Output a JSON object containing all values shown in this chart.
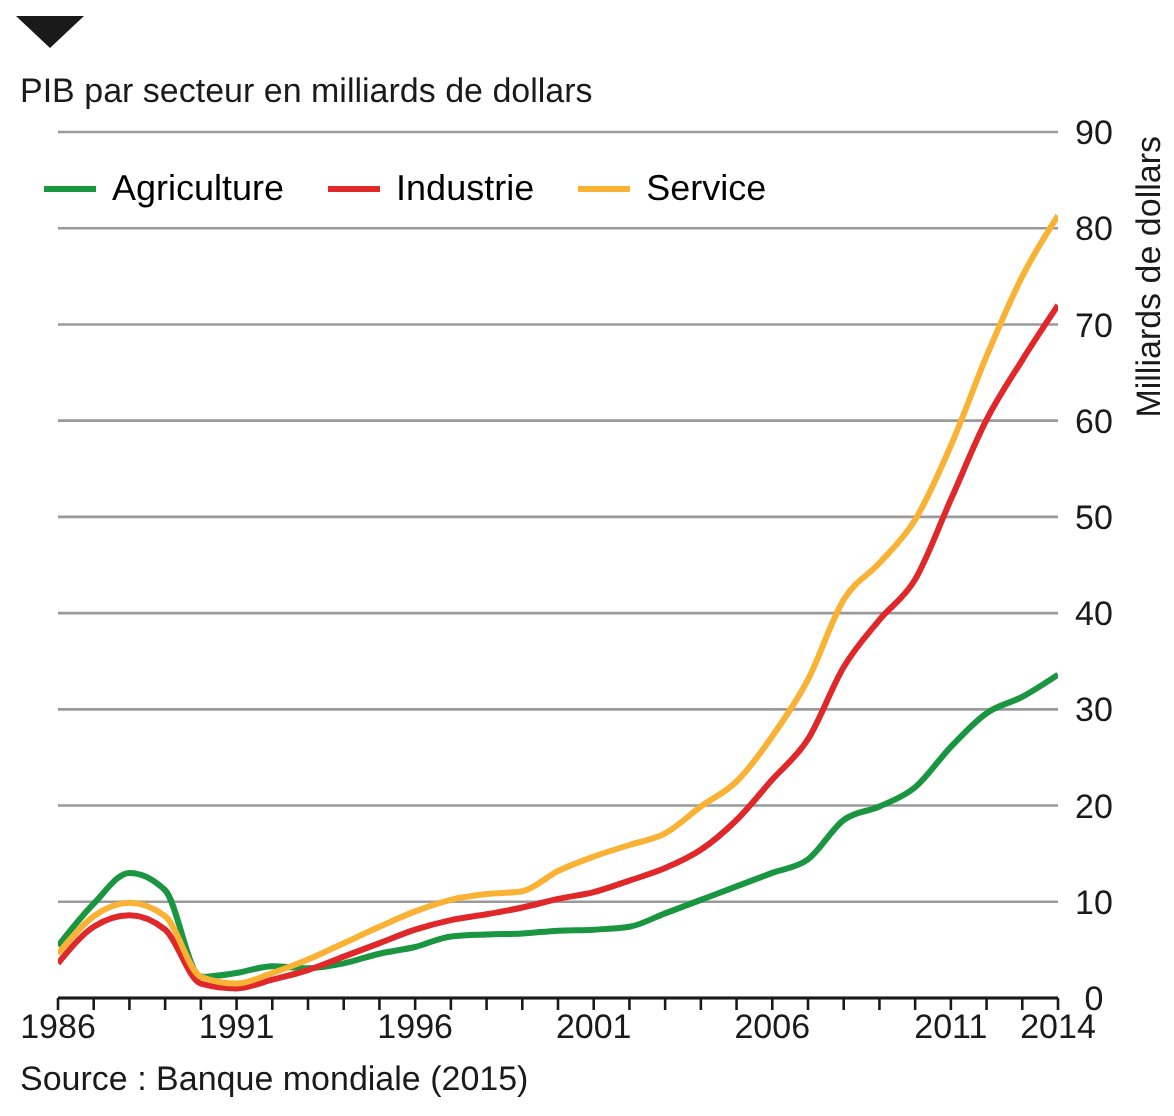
{
  "chart_data": {
    "type": "line",
    "title": "PIB par secteur en milliards de dollars",
    "ylabel": "Milliards de dollars",
    "annotations": [
      "Source : Banque mondiale (2015)"
    ],
    "x": [
      1986,
      1987,
      1988,
      1989,
      1990,
      1991,
      1992,
      1993,
      1994,
      1995,
      1996,
      1997,
      1998,
      1999,
      2000,
      2001,
      2002,
      2003,
      2004,
      2005,
      2006,
      2007,
      2008,
      2009,
      2010,
      2011,
      2012,
      2013,
      2014
    ],
    "series": [
      {
        "name": "Agriculture",
        "color": "#1a9641",
        "values": [
          5.4,
          9.8,
          13.0,
          11.2,
          2.2,
          2.6,
          3.3,
          3.1,
          3.6,
          4.6,
          5.3,
          6.4,
          6.6,
          6.7,
          7.0,
          7.1,
          7.4,
          8.8,
          10.2,
          11.6,
          13.0,
          14.4,
          18.5,
          19.9,
          21.9,
          26.1,
          29.6,
          31.3,
          33.6
        ]
      },
      {
        "name": "Industrie",
        "color": "#e0282a",
        "values": [
          3.6,
          7.4,
          8.6,
          7.1,
          1.5,
          1.0,
          1.9,
          2.9,
          4.3,
          5.7,
          7.1,
          8.1,
          8.7,
          9.4,
          10.3,
          11.0,
          12.2,
          13.5,
          15.4,
          18.5,
          22.7,
          26.9,
          34.4,
          39.3,
          43.5,
          51.8,
          60.1,
          66.3,
          72.0
        ]
      },
      {
        "name": "Service",
        "color": "#f9b233",
        "values": [
          4.6,
          8.5,
          9.9,
          8.5,
          2.2,
          1.5,
          2.6,
          4.0,
          5.7,
          7.4,
          9.0,
          10.2,
          10.8,
          11.1,
          13.2,
          14.7,
          15.9,
          17.1,
          19.9,
          22.5,
          27.2,
          33.1,
          41.4,
          45.2,
          49.7,
          57.4,
          66.7,
          75.0,
          81.3
        ]
      }
    ],
    "xlim": [
      1986,
      2014
    ],
    "xticks": [
      1986,
      {
        "value": 1987,
        "label": null
      },
      {
        "value": 1988,
        "label": null
      },
      {
        "value": 1989,
        "label": null
      },
      {
        "value": 1990,
        "label": null
      },
      1991,
      {
        "value": 1992,
        "label": null
      },
      {
        "value": 1993,
        "label": null
      },
      {
        "value": 1994,
        "label": null
      },
      {
        "value": 1995,
        "label": null
      },
      1996,
      {
        "value": 1997,
        "label": null
      },
      {
        "value": 1998,
        "label": null
      },
      {
        "value": 1999,
        "label": null
      },
      {
        "value": 2000,
        "label": null
      },
      2001,
      {
        "value": 2002,
        "label": null
      },
      {
        "value": 2003,
        "label": null
      },
      {
        "value": 2004,
        "label": null
      },
      {
        "value": 2005,
        "label": null
      },
      2006,
      {
        "value": 2007,
        "label": null
      },
      {
        "value": 2008,
        "label": null
      },
      {
        "value": 2009,
        "label": null
      },
      {
        "value": 2010,
        "label": null
      },
      2011,
      {
        "value": 2012,
        "label": null
      },
      {
        "value": 2013,
        "label": null
      },
      2014
    ],
    "ylim": [
      0,
      90
    ],
    "yticks": [
      0,
      10,
      20,
      30,
      40,
      50,
      60,
      70,
      80,
      90
    ],
    "grid": "y",
    "legend": "top left"
  }
}
